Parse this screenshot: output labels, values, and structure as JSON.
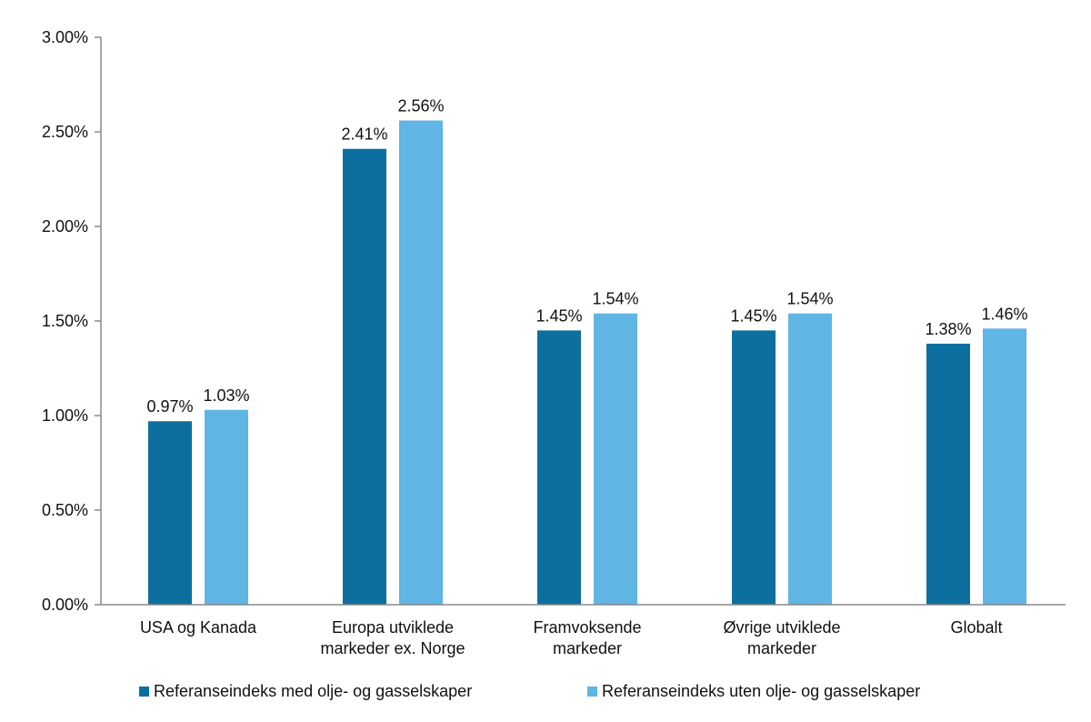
{
  "chart_data": {
    "type": "bar",
    "categories": [
      [
        "USA og Kanada"
      ],
      [
        "Europa utviklede",
        "markeder ex. Norge"
      ],
      [
        "Framvoksende",
        "markeder"
      ],
      [
        "Øvrige utviklede",
        "markeder"
      ],
      [
        "Globalt"
      ]
    ],
    "series": [
      {
        "name": "Referanseindeks med olje- og gasselskaper",
        "color": "#0c6f9f",
        "values": [
          0.97,
          2.41,
          1.45,
          1.45,
          1.38
        ],
        "labels": [
          "0.97%",
          "2.41%",
          "1.45%",
          "1.45%",
          "1.38%"
        ]
      },
      {
        "name": "Referanseindeks uten olje- og gasselskaper",
        "color": "#5fb5e3",
        "values": [
          1.03,
          2.56,
          1.54,
          1.54,
          1.46
        ],
        "labels": [
          "1.03%",
          "2.56%",
          "1.54%",
          "1.54%",
          "1.46%"
        ]
      }
    ],
    "ylim": [
      0,
      3
    ],
    "yticks": [
      "0.00%",
      "0.50%",
      "1.00%",
      "1.50%",
      "2.00%",
      "2.50%",
      "3.00%"
    ],
    "title": "",
    "xlabel": "",
    "ylabel": "",
    "grid": false,
    "legend_position": "bottom"
  }
}
